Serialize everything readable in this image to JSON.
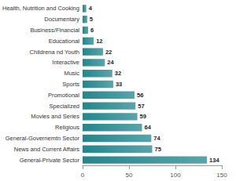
{
  "chart_data": {
    "type": "bar",
    "orientation": "horizontal",
    "categories": [
      "Health, Nutrition and Cooking",
      "Documentary",
      "Business/Financial",
      "Educational",
      "Childrena nd Youth",
      "Interactive",
      "Music",
      "Sports",
      "Promotional",
      "Specialized",
      "Movies and Series",
      "Religious",
      "General-Governemtn Sector",
      "News and Current Affairs",
      "General-Private Sector"
    ],
    "values": [
      4,
      5,
      6,
      12,
      22,
      24,
      32,
      33,
      56,
      57,
      59,
      64,
      74,
      75,
      134
    ],
    "color": "#23868c",
    "xlim": [
      0,
      150
    ],
    "xticks": [
      0,
      50,
      100,
      150
    ],
    "grid": false,
    "data_labels": true
  }
}
